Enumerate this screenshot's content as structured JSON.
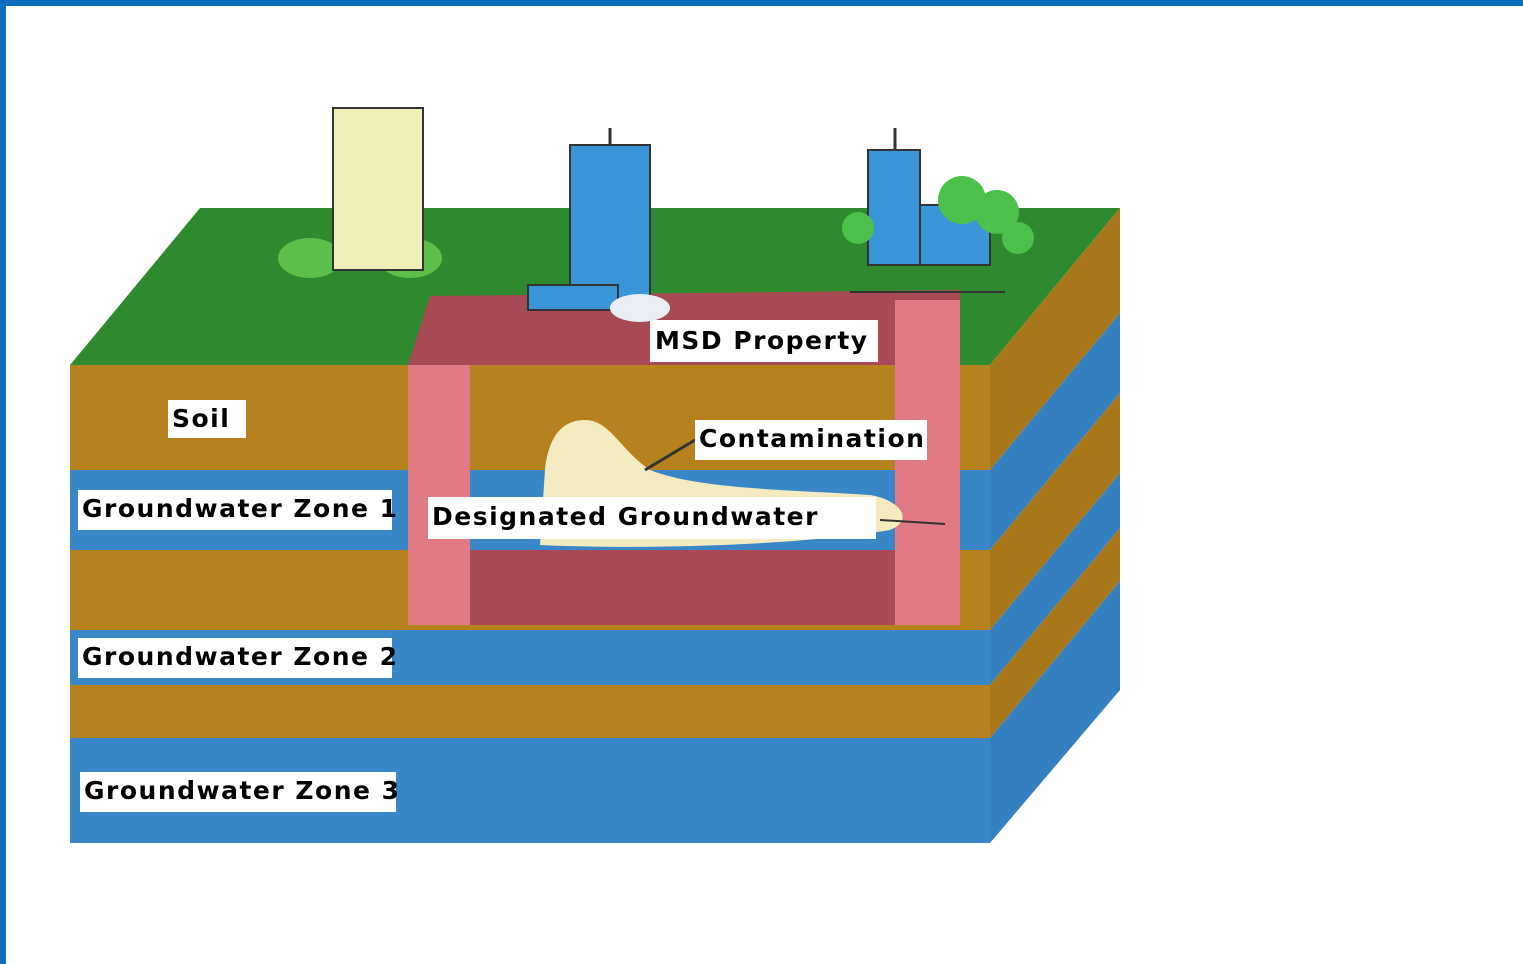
{
  "labels": {
    "msd_property": "MSD Property",
    "soil": "Soil",
    "contamination": "Contamination",
    "groundwater_zone_1": "Groundwater Zone 1",
    "designated_groundwater": "Designated Groundwater",
    "groundwater_zone_2": "Groundwater Zone 2",
    "groundwater_zone_3": "Groundwater Zone 3"
  }
}
